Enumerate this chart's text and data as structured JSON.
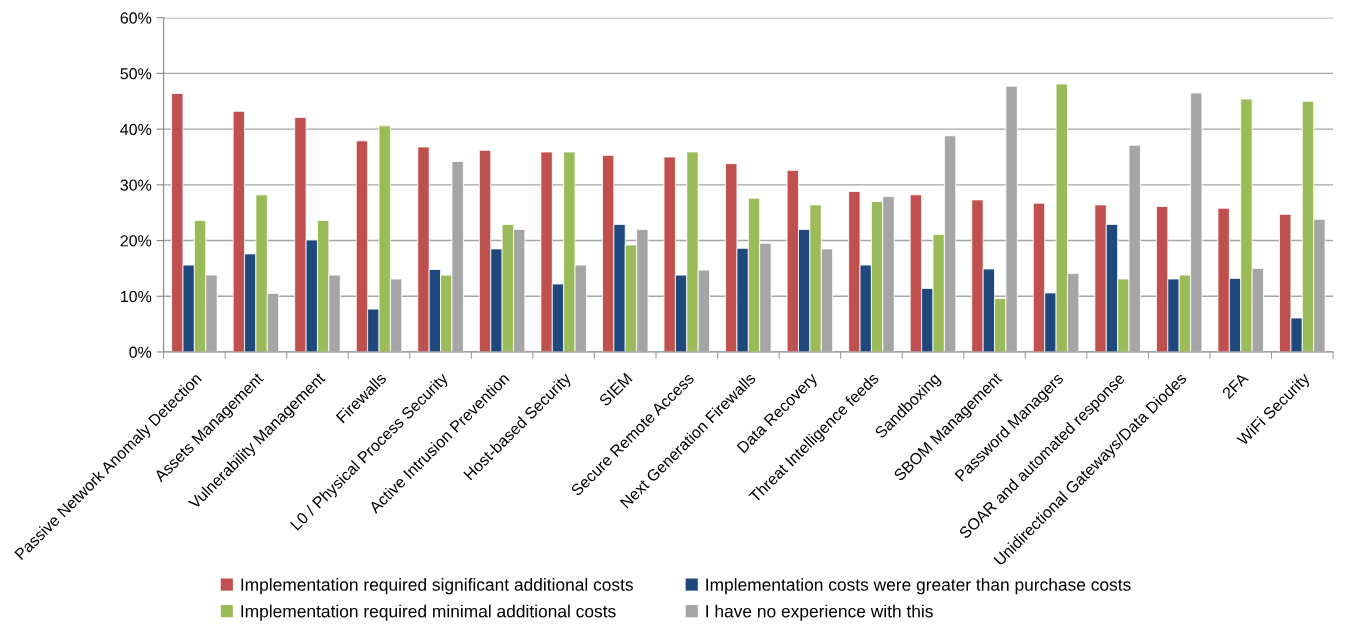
{
  "chart_data": {
    "type": "bar",
    "categories": [
      "Passive Network Anomaly Detection",
      "Assets Management",
      "Vulnerability Management",
      "Firewalls",
      "L0 / Physical Process Security",
      "Active Intrusion Prevention",
      "Host-based Security",
      "SIEM",
      "Secure Remote Access",
      "Next Generation Firewalls",
      "Data Recovery",
      "Threat Intelligence feeds",
      "Sandboxing",
      "SBOM Management",
      "Password Managers",
      "SOAR and automated response",
      "Unidirectional Gateways/Data Diodes",
      "2FA",
      "WiFi Security"
    ],
    "series": [
      {
        "name": "Implementation required significant additional costs",
        "color": "#c0504d",
        "values": [
          46.4,
          43.2,
          42.1,
          37.9,
          36.8,
          36.2,
          35.9,
          35.3,
          35.0,
          33.8,
          32.6,
          28.8,
          28.2,
          27.3,
          26.7,
          26.4,
          26.1,
          25.8,
          24.7
        ]
      },
      {
        "name": "Implementation costs were greater than purchase costs",
        "color": "#1f497d",
        "values": [
          15.6,
          17.6,
          20.1,
          7.7,
          14.8,
          18.5,
          12.2,
          22.9,
          13.8,
          18.6,
          22.0,
          15.6,
          11.4,
          14.9,
          10.6,
          22.9,
          13.1,
          13.2,
          6.1
        ]
      },
      {
        "name": "Implementation required minimal additional costs",
        "color": "#9bbb59",
        "values": [
          23.6,
          28.2,
          23.6,
          40.6,
          13.8,
          22.9,
          35.9,
          19.2,
          35.9,
          27.6,
          26.4,
          27.0,
          21.1,
          9.6,
          48.1,
          13.1,
          13.8,
          45.4,
          45.0
        ]
      },
      {
        "name": "I have no experience with this",
        "color": "#a5a5a5",
        "values": [
          13.8,
          10.5,
          13.8,
          13.1,
          34.2,
          22.0,
          15.6,
          22.0,
          14.7,
          19.5,
          18.5,
          27.9,
          38.8,
          47.7,
          14.1,
          37.1,
          46.5,
          15.0,
          23.8
        ]
      }
    ],
    "ylim": [
      0,
      60
    ],
    "yticks": [
      {
        "value": 0,
        "label": "0%"
      },
      {
        "value": 10,
        "label": "10%"
      },
      {
        "value": 20,
        "label": "20%"
      },
      {
        "value": 30,
        "label": "30%"
      },
      {
        "value": 40,
        "label": "40%"
      },
      {
        "value": 50,
        "label": "50%"
      },
      {
        "value": 60,
        "label": "60%"
      }
    ],
    "grid": "y",
    "legend": "bottom"
  }
}
